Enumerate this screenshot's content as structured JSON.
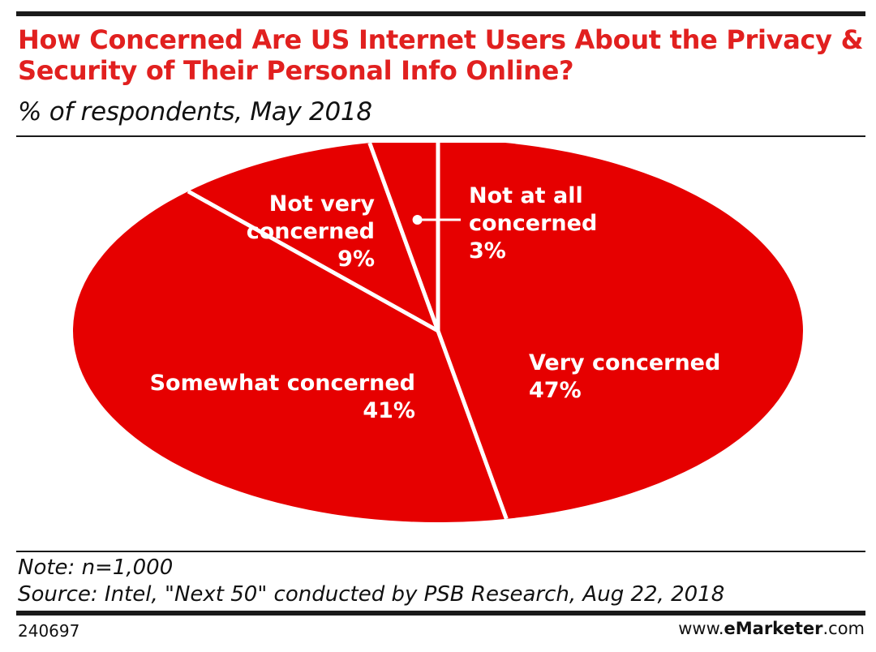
{
  "title": "How Concerned Are US Internet Users About the Privacy & Security of Their Personal Info Online?",
  "subtitle": "% of respondents, May 2018",
  "note": "Note: n=1,000",
  "source": "Source: Intel, \"Next 50\" conducted by PSB Research, Aug 22, 2018",
  "chart_id": "240697",
  "brand": {
    "prefix": "www.",
    "emphasis": "eMarketer",
    "suffix": ".com"
  },
  "colors": {
    "accent": "#e1201f",
    "slice": "#e60000",
    "separator": "#ffffff",
    "rule": "#1a1a1a"
  },
  "chart_data": {
    "type": "pie",
    "title": "How Concerned Are US Internet Users About the Privacy & Security of Their Personal Info Online?",
    "subtitle": "% of respondents, May 2018",
    "slices": [
      {
        "label": "Very concerned",
        "value": 47,
        "value_label": "47%"
      },
      {
        "label": "Somewhat concerned",
        "value": 41,
        "value_label": "41%"
      },
      {
        "label": "Not very concerned",
        "value": 9,
        "value_label": "9%"
      },
      {
        "label": "Not at all concerned",
        "value": 3,
        "value_label": "3%"
      }
    ]
  }
}
